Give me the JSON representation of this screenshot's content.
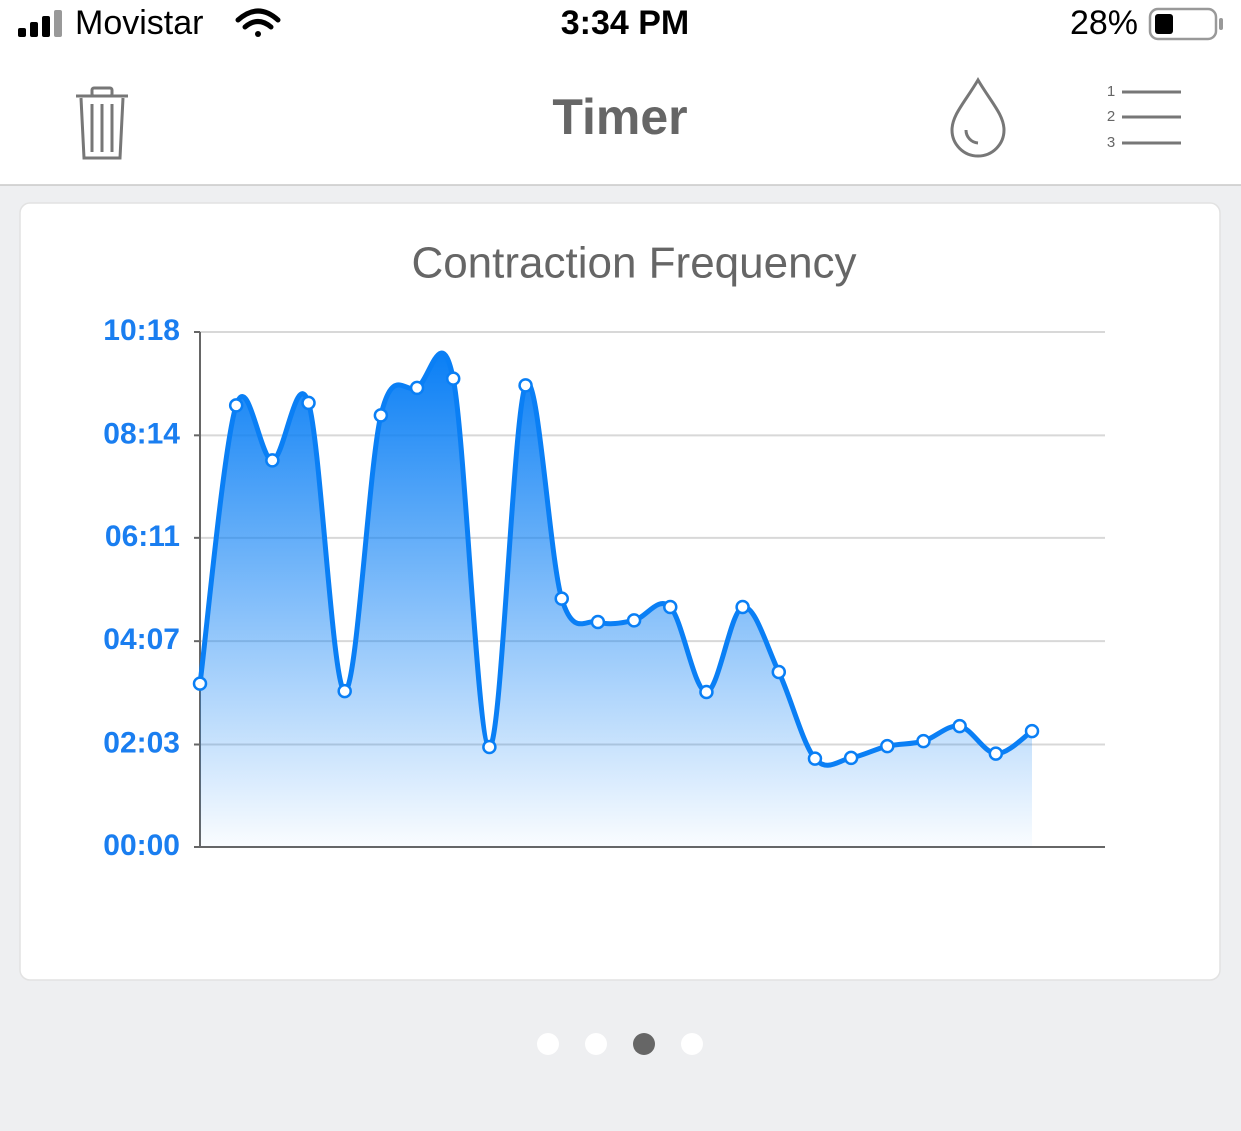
{
  "status_bar": {
    "carrier": "Movistar",
    "time": "3:34 PM",
    "battery": "28%"
  },
  "nav": {
    "title": "Timer",
    "list_icon": [
      "1",
      "2",
      "3"
    ]
  },
  "chart_data": {
    "type": "line",
    "title": "Contraction Frequency",
    "color": "#0a7ff5",
    "values": [
      196,
      530,
      464,
      533,
      187,
      518,
      551,
      562,
      120,
      554,
      298,
      270,
      272,
      288,
      186,
      288,
      210,
      106,
      107,
      121,
      127,
      145,
      112,
      139
    ],
    "ylim": [
      0,
      618
    ],
    "yticks": [
      {
        "value": 0,
        "label": "00:00"
      },
      {
        "value": 123,
        "label": "02:03"
      },
      {
        "value": 247,
        "label": "04:07"
      },
      {
        "value": 371,
        "label": "06:11"
      },
      {
        "value": 494,
        "label": "08:14"
      },
      {
        "value": 618,
        "label": "10:18"
      }
    ],
    "grid": true
  }
}
